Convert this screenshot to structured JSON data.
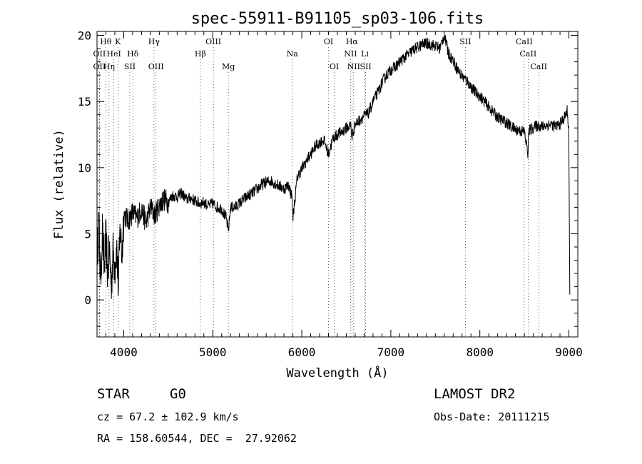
{
  "chart_data": {
    "type": "line",
    "title": "spec-55911-B91105_sp03-106.fits",
    "xlabel": "Wavelength (Å)",
    "ylabel": "Flux (relative)",
    "xlim": [
      3700,
      9100
    ],
    "ylim": [
      -2.8,
      20.3
    ],
    "xticks": [
      4000,
      5000,
      6000,
      7000,
      8000,
      9000
    ],
    "yticks": [
      0,
      5,
      10,
      15,
      20
    ],
    "grid": false,
    "series": [
      {
        "x": [
          3700,
          3720,
          3740,
          3760,
          3780,
          3800,
          3820,
          3840,
          3860,
          3880,
          3900,
          3920,
          3940,
          3960,
          3980,
          4000,
          4050,
          4100,
          4150,
          4200,
          4250,
          4300,
          4350,
          4400,
          4450,
          4500,
          4550,
          4600,
          4650,
          4700,
          4750,
          4800,
          4850,
          4900,
          4950,
          5000,
          5050,
          5100,
          5150,
          5175,
          5200,
          5250,
          5300,
          5350,
          5400,
          5450,
          5500,
          5550,
          5600,
          5650,
          5700,
          5750,
          5800,
          5850,
          5890,
          5900,
          5950,
          6000,
          6050,
          6100,
          6150,
          6200,
          6250,
          6300,
          6350,
          6400,
          6450,
          6500,
          6550,
          6563,
          6600,
          6650,
          6700,
          6750,
          6800,
          6850,
          6900,
          6950,
          7000,
          7050,
          7100,
          7150,
          7200,
          7250,
          7300,
          7350,
          7400,
          7450,
          7500,
          7550,
          7600,
          7650,
          7700,
          7750,
          7800,
          7850,
          7900,
          7950,
          8000,
          8050,
          8100,
          8150,
          8200,
          8250,
          8300,
          8350,
          8400,
          8450,
          8500,
          8542,
          8550,
          8600,
          8650,
          8700,
          8750,
          8800,
          8850,
          8900,
          8950,
          8980,
          9000,
          9010
        ],
        "y": [
          3.0,
          6.0,
          1.5,
          5.2,
          2.4,
          4.6,
          2.0,
          3.8,
          1.2,
          3.5,
          2.6,
          4.0,
          1.0,
          5.5,
          3.2,
          6.5,
          6.0,
          6.6,
          6.2,
          6.9,
          5.8,
          7.0,
          6.4,
          7.2,
          7.6,
          7.4,
          7.9,
          7.8,
          8.1,
          7.6,
          7.7,
          7.5,
          7.3,
          7.4,
          7.1,
          7.3,
          7.0,
          6.9,
          6.2,
          5.2,
          7.0,
          7.0,
          7.3,
          7.6,
          7.9,
          8.1,
          8.4,
          8.7,
          8.9,
          9.0,
          8.8,
          8.6,
          8.4,
          8.7,
          7.8,
          6.2,
          9.3,
          9.9,
          10.5,
          11.0,
          11.6,
          11.9,
          12.1,
          11.0,
          12.2,
          12.5,
          12.7,
          13.0,
          13.2,
          12.3,
          13.3,
          13.6,
          13.9,
          14.1,
          15.0,
          15.6,
          16.4,
          17.0,
          17.4,
          17.6,
          18.0,
          18.3,
          18.6,
          18.9,
          19.1,
          19.3,
          19.4,
          19.3,
          19.2,
          19.0,
          20.0,
          18.6,
          18.1,
          17.4,
          16.9,
          16.6,
          16.1,
          15.7,
          15.4,
          15.0,
          14.6,
          14.2,
          13.8,
          13.6,
          13.4,
          13.1,
          12.9,
          12.8,
          12.7,
          11.0,
          12.8,
          13.0,
          13.2,
          13.1,
          13.2,
          13.3,
          13.1,
          13.3,
          13.8,
          14.3,
          12.8,
          0.4
        ]
      }
    ],
    "lines": [
      {
        "label": "Hθ",
        "x": 3798,
        "row": 1
      },
      {
        "label": "K",
        "x": 3934,
        "row": 1
      },
      {
        "label": "Hγ",
        "x": 4340,
        "row": 1
      },
      {
        "label": "OIII",
        "x": 5007,
        "row": 1
      },
      {
        "label": "OI",
        "x": 6300,
        "row": 1
      },
      {
        "label": "Hα",
        "x": 6563,
        "row": 1
      },
      {
        "label": "SII",
        "x": 7837,
        "row": 1
      },
      {
        "label": "CaII",
        "x": 8498,
        "row": 1
      },
      {
        "label": "OII",
        "x": 3727,
        "row": 2
      },
      {
        "label": "HeI",
        "x": 3889,
        "row": 2
      },
      {
        "label": "Hδ",
        "x": 4102,
        "row": 2
      },
      {
        "label": "Hβ",
        "x": 4861,
        "row": 2
      },
      {
        "label": "Na",
        "x": 5893,
        "row": 2
      },
      {
        "label": "NII",
        "x": 6548,
        "row": 2
      },
      {
        "label": "Li",
        "x": 6708,
        "row": 2
      },
      {
        "label": "CaII",
        "x": 8542,
        "row": 2
      },
      {
        "label": "OII",
        "x": 3727,
        "row": 3
      },
      {
        "label": "Hη",
        "x": 3835,
        "row": 3
      },
      {
        "label": "SII",
        "x": 4068,
        "row": 3
      },
      {
        "label": "OIII",
        "x": 4363,
        "row": 3
      },
      {
        "label": "Mg",
        "x": 5175,
        "row": 3
      },
      {
        "label": "OI",
        "x": 6364,
        "row": 3
      },
      {
        "label": "NII",
        "x": 6583,
        "row": 3
      },
      {
        "label": "SII",
        "x": 6717,
        "row": 3
      },
      {
        "label": "CaII",
        "x": 8662,
        "row": 3
      }
    ]
  },
  "info": {
    "object_class": "STAR",
    "subclass": "G0",
    "survey": "LAMOST DR2",
    "redshift": "cz = 67.2 ± 102.9 km/s",
    "obs_date": "Obs-Date: 20111215",
    "coords": "RA = 158.60544, DEC =  27.92062"
  }
}
